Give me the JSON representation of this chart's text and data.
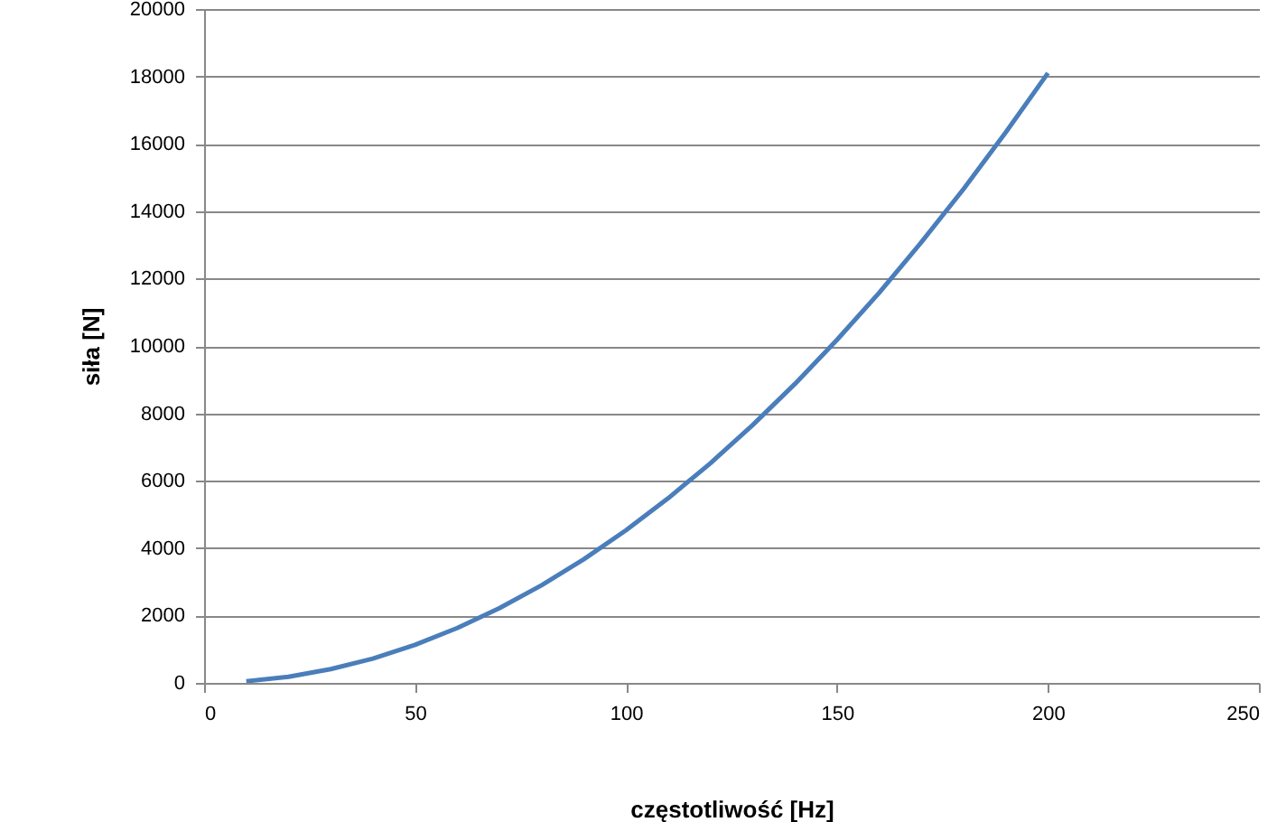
{
  "chart_data": {
    "type": "line",
    "xlabel": "częstotliwość [Hz]",
    "ylabel": "siła [N]",
    "x": [
      10,
      20,
      30,
      40,
      50,
      60,
      70,
      80,
      90,
      100,
      110,
      120,
      130,
      140,
      150,
      160,
      170,
      180,
      190,
      200
    ],
    "series": [
      {
        "color": "#4a7ebb",
        "values": [
          50,
          180,
          410,
          720,
          1130,
          1630,
          2220,
          2900,
          3670,
          4530,
          5480,
          6520,
          7650,
          8870,
          10180,
          11580,
          13080,
          14660,
          16340,
          18100
        ]
      }
    ],
    "xlim": [
      0,
      250
    ],
    "xticks": [
      0,
      50,
      100,
      150,
      200,
      250
    ],
    "ylim": [
      0,
      20000
    ],
    "yticks": [
      0,
      2000,
      4000,
      6000,
      8000,
      10000,
      12000,
      14000,
      16000,
      18000,
      20000
    ],
    "grid": "y",
    "marker": "none",
    "line_style": "solid"
  }
}
